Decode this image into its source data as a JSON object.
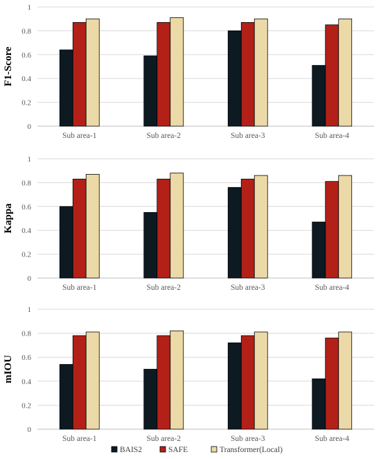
{
  "chart_data": [
    {
      "type": "bar",
      "ylabel": "F1-Score",
      "categories": [
        "Sub area-1",
        "Sub area-2",
        "Sub area-3",
        "Sub area-4"
      ],
      "ylim": [
        0,
        1
      ],
      "yticks": [
        "0",
        "0.2",
        "0.4",
        "0.6",
        "0.8",
        "1"
      ],
      "grid": true,
      "series": [
        {
          "name": "BAIS2",
          "values": [
            0.64,
            0.59,
            0.8,
            0.51
          ]
        },
        {
          "name": "SAFE",
          "values": [
            0.87,
            0.87,
            0.87,
            0.85
          ]
        },
        {
          "name": "Transformer(Local)",
          "values": [
            0.9,
            0.91,
            0.9,
            0.9
          ]
        }
      ]
    },
    {
      "type": "bar",
      "ylabel": "Kappa",
      "categories": [
        "Sub area-1",
        "Sub area-2",
        "Sub area-3",
        "Sub area-4"
      ],
      "ylim": [
        0,
        1
      ],
      "yticks": [
        "0",
        "0.2",
        "0.4",
        "0.6",
        "0.8",
        "1"
      ],
      "grid": true,
      "series": [
        {
          "name": "BAIS2",
          "values": [
            0.6,
            0.55,
            0.76,
            0.47
          ]
        },
        {
          "name": "SAFE",
          "values": [
            0.83,
            0.83,
            0.83,
            0.81
          ]
        },
        {
          "name": "Transformer(Local)",
          "values": [
            0.87,
            0.88,
            0.86,
            0.86
          ]
        }
      ]
    },
    {
      "type": "bar",
      "ylabel": "mIOU",
      "categories": [
        "Sub area-1",
        "Sub area-2",
        "Sub area-3",
        "Sub area-4"
      ],
      "ylim": [
        0,
        1
      ],
      "yticks": [
        "0",
        "0.2",
        "0.4",
        "0.6",
        "0.8",
        "1"
      ],
      "grid": true,
      "series": [
        {
          "name": "BAIS2",
          "values": [
            0.54,
            0.5,
            0.72,
            0.42
          ]
        },
        {
          "name": "SAFE",
          "values": [
            0.78,
            0.78,
            0.78,
            0.76
          ]
        },
        {
          "name": "Transformer(Local)",
          "values": [
            0.81,
            0.82,
            0.81,
            0.81
          ]
        }
      ]
    }
  ],
  "legend": {
    "position": "bottom",
    "items": [
      {
        "label": "BAIS2",
        "color": "#0d1a22"
      },
      {
        "label": "SAFE",
        "color": "#b32018"
      },
      {
        "label": "Transformer(Local)",
        "color": "#ecd9a8"
      }
    ]
  }
}
